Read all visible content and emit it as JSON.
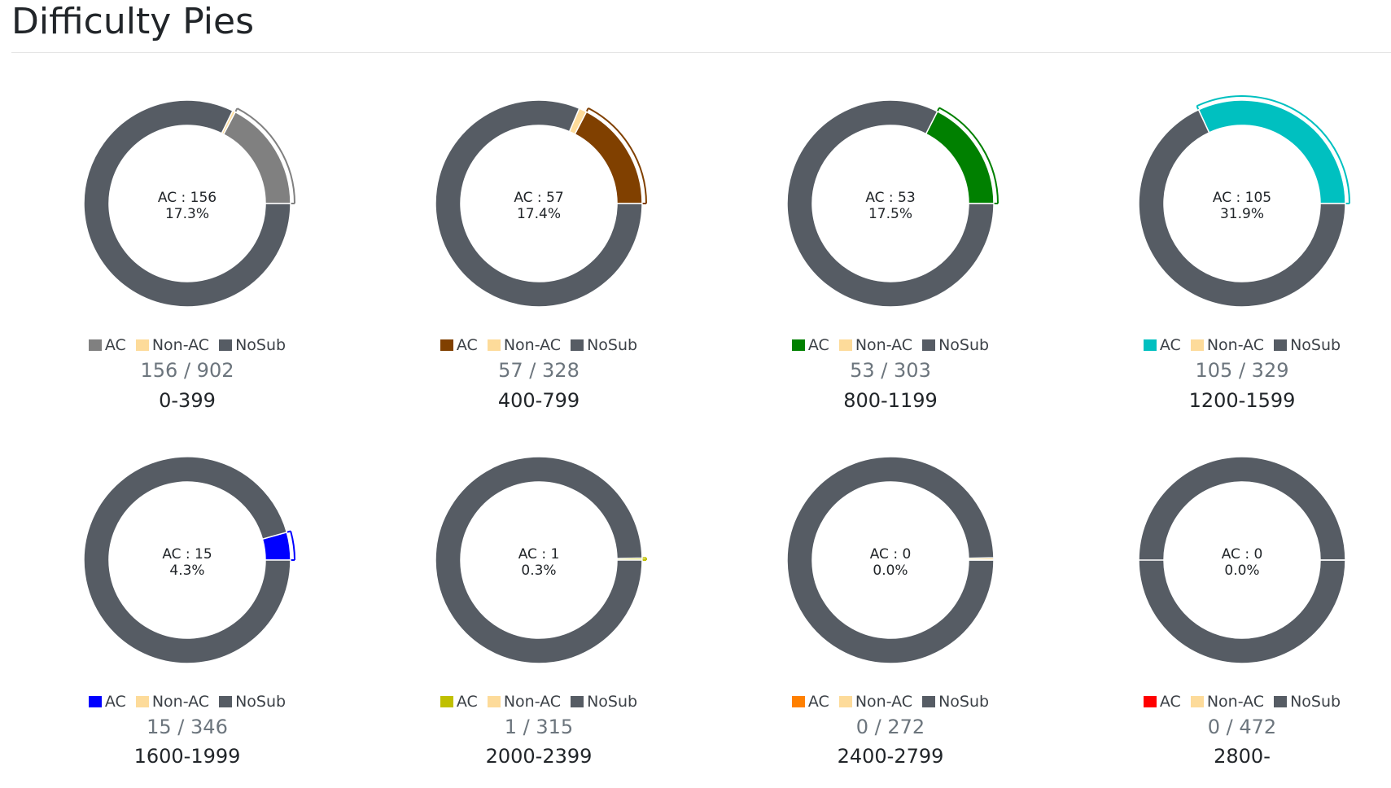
{
  "page": {
    "title": "Difficulty Pies"
  },
  "colors": {
    "nosub": "#565c64",
    "nonac": "#fddb9a",
    "center_text": "#212529"
  },
  "legend_labels": {
    "ac": "AC",
    "nonac": "Non-AC",
    "nosub": "NoSub"
  },
  "chart_data": [
    {
      "type": "pie",
      "range": "0-399",
      "ac_color": "#808080",
      "center_line1": "AC : 156",
      "center_line2": "17.3%",
      "ratio": "156 / 902",
      "total": 902,
      "slices": [
        {
          "label": "AC",
          "value": 156
        },
        {
          "label": "Non-AC",
          "value": 4
        },
        {
          "label": "NoSub",
          "value": 742
        }
      ]
    },
    {
      "type": "pie",
      "range": "400-799",
      "ac_color": "#804000",
      "center_line1": "AC : 57",
      "center_line2": "17.4%",
      "ratio": "57 / 328",
      "total": 328,
      "slices": [
        {
          "label": "AC",
          "value": 57
        },
        {
          "label": "Non-AC",
          "value": 4
        },
        {
          "label": "NoSub",
          "value": 267
        }
      ]
    },
    {
      "type": "pie",
      "range": "800-1199",
      "ac_color": "#008000",
      "center_line1": "AC : 53",
      "center_line2": "17.5%",
      "ratio": "53 / 303",
      "total": 303,
      "slices": [
        {
          "label": "AC",
          "value": 53
        },
        {
          "label": "Non-AC",
          "value": 0
        },
        {
          "label": "NoSub",
          "value": 250
        }
      ]
    },
    {
      "type": "pie",
      "range": "1200-1599",
      "ac_color": "#00c0c0",
      "center_line1": "AC : 105",
      "center_line2": "31.9%",
      "ratio": "105 / 329",
      "total": 329,
      "slices": [
        {
          "label": "AC",
          "value": 105
        },
        {
          "label": "Non-AC",
          "value": 0
        },
        {
          "label": "NoSub",
          "value": 224
        }
      ]
    },
    {
      "type": "pie",
      "range": "1600-1999",
      "ac_color": "#0000ff",
      "center_line1": "AC : 15",
      "center_line2": "4.3%",
      "ratio": "15 / 346",
      "total": 346,
      "slices": [
        {
          "label": "AC",
          "value": 15
        },
        {
          "label": "Non-AC",
          "value": 0
        },
        {
          "label": "NoSub",
          "value": 331
        }
      ]
    },
    {
      "type": "pie",
      "range": "2000-2399",
      "ac_color": "#c0c000",
      "center_line1": "AC : 1",
      "center_line2": "0.3%",
      "ratio": "1 / 315",
      "total": 315,
      "slices": [
        {
          "label": "AC",
          "value": 1
        },
        {
          "label": "Non-AC",
          "value": 0
        },
        {
          "label": "NoSub",
          "value": 314
        }
      ]
    },
    {
      "type": "pie",
      "range": "2400-2799",
      "ac_color": "#ff8000",
      "center_line1": "AC : 0",
      "center_line2": "0.0%",
      "ratio": "0 / 272",
      "total": 272,
      "slices": [
        {
          "label": "AC",
          "value": 0
        },
        {
          "label": "Non-AC",
          "value": 1
        },
        {
          "label": "NoSub",
          "value": 271
        }
      ]
    },
    {
      "type": "pie",
      "range": "2800-",
      "ac_color": "#ff0000",
      "center_line1": "AC : 0",
      "center_line2": "0.0%",
      "ratio": "0 / 472",
      "total": 472,
      "slices": [
        {
          "label": "AC",
          "value": 0
        },
        {
          "label": "Non-AC",
          "value": 0
        },
        {
          "label": "NoSub",
          "value": 472
        }
      ]
    }
  ]
}
